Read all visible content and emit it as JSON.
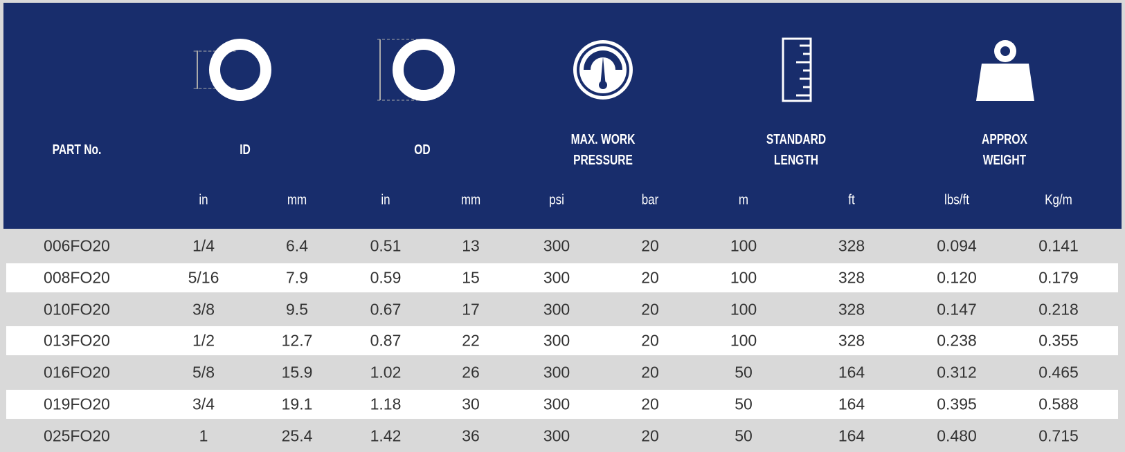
{
  "header": {
    "part": "PART No.",
    "groups": [
      {
        "lines": [
          "ID"
        ],
        "units": [
          "in",
          "mm"
        ]
      },
      {
        "lines": [
          "OD"
        ],
        "units": [
          "in",
          "mm"
        ]
      },
      {
        "lines": [
          "MAX. WORK",
          "PRESSURE"
        ],
        "units": [
          "psi",
          "bar"
        ]
      },
      {
        "lines": [
          "STANDARD",
          "LENGTH"
        ],
        "units": [
          "m",
          "ft"
        ]
      },
      {
        "lines": [
          "APPROX",
          "WEIGHT"
        ],
        "units": [
          "lbs/ft",
          "Kg/m"
        ]
      }
    ]
  },
  "table": {
    "rows": [
      [
        "006FO20",
        "1/4",
        "6.4",
        "0.51",
        "13",
        "300",
        "20",
        "100",
        "328",
        "0.094",
        "0.141"
      ],
      [
        "008FO20",
        "5/16",
        "7.9",
        "0.59",
        "15",
        "300",
        "20",
        "100",
        "328",
        "0.120",
        "0.179"
      ],
      [
        "010FO20",
        "3/8",
        "9.5",
        "0.67",
        "17",
        "300",
        "20",
        "100",
        "328",
        "0.147",
        "0.218"
      ],
      [
        "013FO20",
        "1/2",
        "12.7",
        "0.87",
        "22",
        "300",
        "20",
        "100",
        "328",
        "0.238",
        "0.355"
      ],
      [
        "016FO20",
        "5/8",
        "15.9",
        "1.02",
        "26",
        "300",
        "20",
        "50",
        "164",
        "0.312",
        "0.465"
      ],
      [
        "019FO20",
        "3/4",
        "19.1",
        "1.18",
        "30",
        "300",
        "20",
        "50",
        "164",
        "0.395",
        "0.588"
      ],
      [
        "025FO20",
        "1",
        "25.4",
        "1.42",
        "36",
        "300",
        "20",
        "50",
        "164",
        "0.480",
        "0.715"
      ]
    ]
  }
}
